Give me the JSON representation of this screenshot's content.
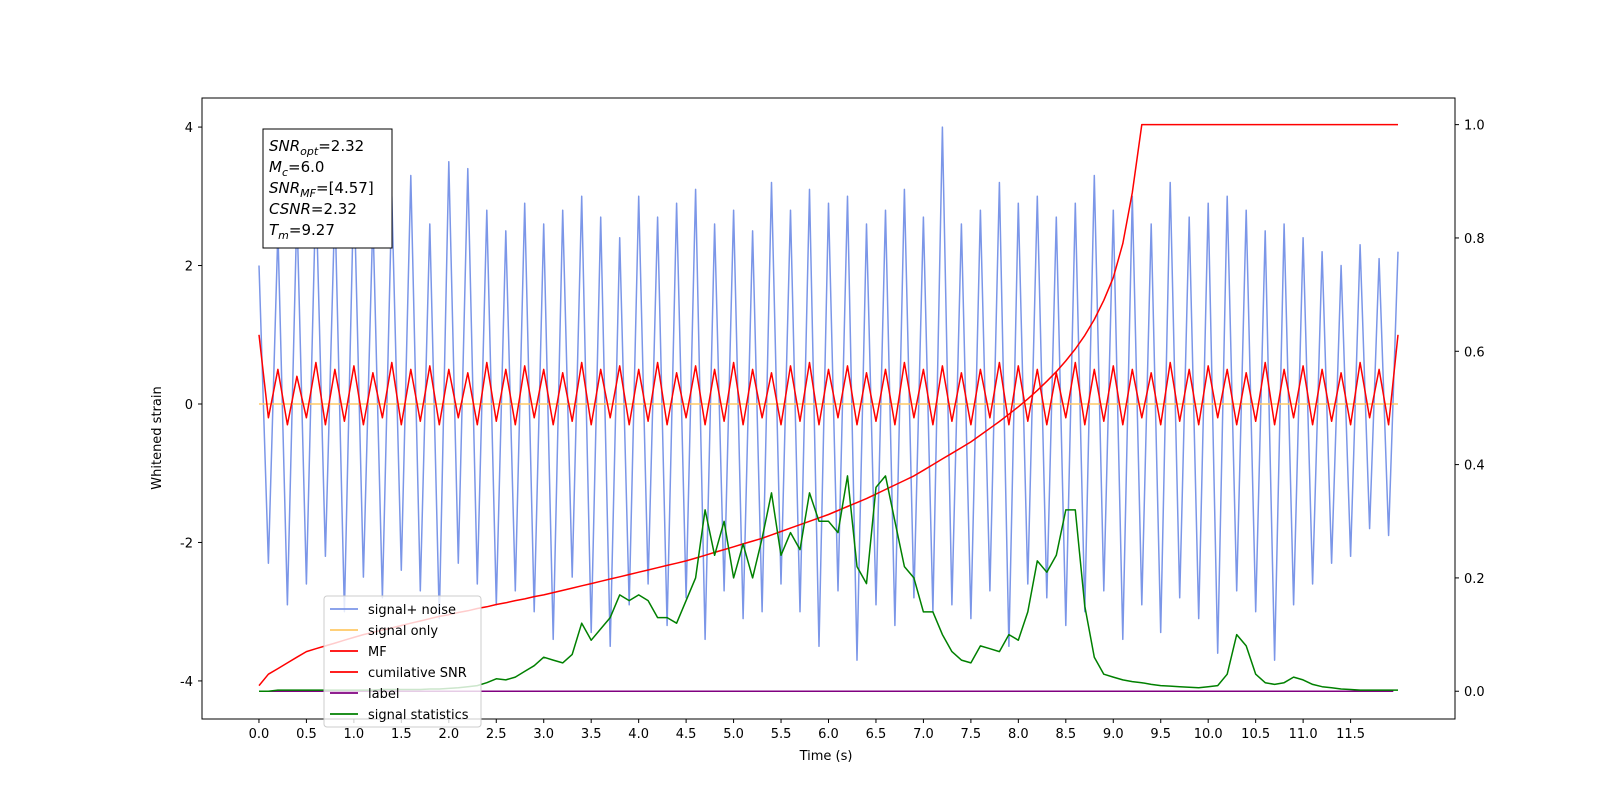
{
  "chart_data": {
    "type": "line",
    "xlabel": "Time (s)",
    "ylabel": "Whitened strain",
    "xlim": [
      -0.6,
      12.6
    ],
    "ylim": [
      -4.55,
      4.42
    ],
    "y2lim": [
      -0.049,
      1.047
    ],
    "xticks": [
      {
        "value": 0,
        "label": "0.0"
      },
      {
        "value": 0.5,
        "label": "0.5"
      },
      {
        "value": 1,
        "label": "1.0"
      },
      {
        "value": 1.5,
        "label": "1.5"
      },
      {
        "value": 2,
        "label": "2.0"
      },
      {
        "value": 2.5,
        "label": "2.5"
      },
      {
        "value": 3,
        "label": "3.0"
      },
      {
        "value": 3.5,
        "label": "3.5"
      },
      {
        "value": 4,
        "label": "4.0"
      },
      {
        "value": 4.5,
        "label": "4.5"
      },
      {
        "value": 5,
        "label": "5.0"
      },
      {
        "value": 5.5,
        "label": "5.5"
      },
      {
        "value": 6,
        "label": "6.0"
      },
      {
        "value": 6.5,
        "label": "6.5"
      },
      {
        "value": 7,
        "label": "7.0"
      },
      {
        "value": 7.5,
        "label": "7.5"
      },
      {
        "value": 8,
        "label": "8.0"
      },
      {
        "value": 8.5,
        "label": "8.5"
      },
      {
        "value": 9,
        "label": "9.0"
      },
      {
        "value": 9.5,
        "label": "9.5"
      },
      {
        "value": 10,
        "label": "10.0"
      },
      {
        "value": 10.5,
        "label": "10.5"
      },
      {
        "value": 11,
        "label": "11.0"
      },
      {
        "value": 11.5,
        "label": "11.5"
      }
    ],
    "yticks": [
      -4,
      -2,
      0,
      2,
      4
    ],
    "y2ticks": [
      {
        "value": 0,
        "label": "0.0"
      },
      {
        "value": 0.2,
        "label": "0.2"
      },
      {
        "value": 0.4,
        "label": "0.4"
      },
      {
        "value": 0.6,
        "label": "0.6"
      },
      {
        "value": 0.8,
        "label": "0.8"
      },
      {
        "value": 1,
        "label": "1.0"
      }
    ],
    "x": [
      0,
      0.1,
      0.2,
      0.3,
      0.4,
      0.5,
      0.6,
      0.7,
      0.8,
      0.9,
      1,
      1.1,
      1.2,
      1.3,
      1.4,
      1.5,
      1.6,
      1.7,
      1.8,
      1.9,
      2,
      2.1,
      2.2,
      2.3,
      2.4,
      2.5,
      2.6,
      2.7,
      2.8,
      2.9,
      3,
      3.1,
      3.2,
      3.3,
      3.4,
      3.5,
      3.6,
      3.7,
      3.8,
      3.9,
      4,
      4.1,
      4.2,
      4.3,
      4.4,
      4.5,
      4.6,
      4.7,
      4.8,
      4.9,
      5,
      5.1,
      5.2,
      5.3,
      5.4,
      5.5,
      5.6,
      5.7,
      5.8,
      5.9,
      6,
      6.1,
      6.2,
      6.3,
      6.4,
      6.5,
      6.6,
      6.7,
      6.8,
      6.9,
      7,
      7.1,
      7.2,
      7.3,
      7.4,
      7.5,
      7.6,
      7.7,
      7.8,
      7.9,
      8,
      8.1,
      8.2,
      8.3,
      8.4,
      8.5,
      8.6,
      8.7,
      8.8,
      8.9,
      9,
      9.1,
      9.2,
      9.3,
      9.4,
      9.5,
      9.6,
      9.7,
      9.8,
      9.9,
      10,
      10.1,
      10.2,
      10.3,
      10.4,
      10.5,
      10.6,
      10.7,
      10.8,
      10.9,
      11,
      11.1,
      11.2,
      11.3,
      11.4,
      11.5,
      11.6,
      11.7,
      11.8,
      11.9,
      12
    ],
    "series": [
      {
        "name": "signal+ noise",
        "color": "#7b96e8",
        "axis": "y",
        "values": [
          2.0,
          -2.3,
          2.5,
          -2.9,
          2.8,
          -2.6,
          3.1,
          -2.2,
          2.9,
          -3.0,
          3.2,
          -2.5,
          2.7,
          -2.8,
          3.0,
          -2.4,
          3.3,
          -2.7,
          2.6,
          -3.1,
          3.5,
          -2.3,
          3.4,
          -2.6,
          2.8,
          -2.9,
          2.5,
          -2.7,
          2.9,
          -3.0,
          2.6,
          -3.4,
          2.8,
          -2.5,
          3.0,
          -3.3,
          2.7,
          -3.5,
          2.4,
          -2.9,
          3.0,
          -2.6,
          2.7,
          -3.2,
          2.9,
          -2.8,
          3.1,
          -3.4,
          2.6,
          -2.7,
          2.8,
          -3.1,
          2.5,
          -3.0,
          3.2,
          -2.6,
          2.8,
          -3.0,
          3.1,
          -3.5,
          2.9,
          -2.7,
          3.0,
          -3.7,
          2.6,
          -2.9,
          2.8,
          -3.2,
          3.1,
          -2.8,
          2.7,
          -3.0,
          4.0,
          -2.9,
          2.6,
          -3.1,
          2.8,
          -2.7,
          3.2,
          -3.5,
          2.9,
          -2.6,
          3.0,
          -2.8,
          2.7,
          -3.2,
          2.9,
          -3.0,
          3.3,
          -2.7,
          2.8,
          -3.4,
          3.0,
          -2.9,
          2.6,
          -3.3,
          3.2,
          -2.8,
          2.7,
          -3.1,
          2.9,
          -3.6,
          3.0,
          -2.7,
          2.8,
          -3.0,
          2.5,
          -3.7,
          2.6,
          -2.9,
          2.4,
          -2.6,
          2.2,
          -2.3,
          2.0,
          -2.2,
          2.3,
          -1.8,
          2.1,
          -1.9,
          2.2
        ]
      },
      {
        "name": "signal only",
        "color": "#ffc966",
        "axis": "y",
        "x": [
          0,
          12
        ],
        "values": [
          0,
          0
        ]
      },
      {
        "name": "MF",
        "color": "#ff0000",
        "axis": "y",
        "values": [
          1.0,
          -0.2,
          0.5,
          -0.3,
          0.4,
          -0.2,
          0.6,
          -0.3,
          0.5,
          -0.25,
          0.55,
          -0.3,
          0.45,
          -0.2,
          0.6,
          -0.3,
          0.5,
          -0.25,
          0.55,
          -0.3,
          0.5,
          -0.2,
          0.45,
          -0.3,
          0.6,
          -0.25,
          0.5,
          -0.3,
          0.55,
          -0.2,
          0.5,
          -0.3,
          0.45,
          -0.25,
          0.6,
          -0.3,
          0.5,
          -0.2,
          0.55,
          -0.3,
          0.5,
          -0.25,
          0.6,
          -0.3,
          0.45,
          -0.2,
          0.55,
          -0.3,
          0.5,
          -0.25,
          0.6,
          -0.3,
          0.5,
          -0.2,
          0.45,
          -0.3,
          0.55,
          -0.25,
          0.6,
          -0.3,
          0.5,
          -0.2,
          0.55,
          -0.3,
          0.45,
          -0.25,
          0.5,
          -0.3,
          0.6,
          -0.2,
          0.5,
          -0.3,
          0.55,
          -0.25,
          0.45,
          -0.3,
          0.5,
          -0.2,
          0.6,
          -0.3,
          0.55,
          -0.25,
          0.5,
          -0.3,
          0.45,
          -0.2,
          0.6,
          -0.3,
          0.5,
          -0.25,
          0.55,
          -0.3,
          0.5,
          -0.2,
          0.45,
          -0.3,
          0.6,
          -0.25,
          0.5,
          -0.3,
          0.55,
          -0.2,
          0.5,
          -0.3,
          0.45,
          -0.25,
          0.6,
          -0.3,
          0.5,
          -0.2,
          0.55,
          -0.3,
          0.5,
          -0.25,
          0.45,
          -0.3,
          0.6,
          -0.2,
          0.5,
          -0.3,
          1.0
        ]
      },
      {
        "name": "cumilative SNR",
        "color": "#ff0000",
        "axis": "y2",
        "values": [
          0.01,
          0.03,
          0.04,
          0.05,
          0.06,
          0.07,
          0.075,
          0.08,
          0.085,
          0.09,
          0.095,
          0.1,
          0.104,
          0.108,
          0.112,
          0.116,
          0.12,
          0.124,
          0.128,
          0.132,
          0.135,
          0.139,
          0.142,
          0.146,
          0.149,
          0.153,
          0.156,
          0.16,
          0.163,
          0.167,
          0.17,
          0.174,
          0.178,
          0.182,
          0.186,
          0.19,
          0.194,
          0.198,
          0.202,
          0.206,
          0.21,
          0.214,
          0.218,
          0.222,
          0.226,
          0.23,
          0.235,
          0.24,
          0.245,
          0.25,
          0.255,
          0.26,
          0.265,
          0.27,
          0.276,
          0.282,
          0.288,
          0.294,
          0.3,
          0.306,
          0.312,
          0.319,
          0.326,
          0.333,
          0.34,
          0.348,
          0.356,
          0.364,
          0.372,
          0.38,
          0.39,
          0.4,
          0.41,
          0.42,
          0.43,
          0.44,
          0.452,
          0.464,
          0.476,
          0.489,
          0.502,
          0.516,
          0.531,
          0.547,
          0.564,
          0.583,
          0.604,
          0.628,
          0.656,
          0.69,
          0.73,
          0.79,
          0.88,
          1.0,
          1,
          1,
          1,
          1,
          1,
          1,
          1,
          1,
          1,
          1,
          1,
          1,
          1,
          1,
          1,
          1,
          1,
          1,
          1,
          1,
          1,
          1,
          1,
          1,
          1,
          1,
          1
        ]
      },
      {
        "name": "label",
        "color": "#800080",
        "axis": "y2",
        "x": [
          0,
          11.95
        ],
        "values": [
          0,
          0
        ]
      },
      {
        "name": "signal statistics",
        "color": "#008000",
        "axis": "y2",
        "values": [
          0,
          0,
          0.002,
          0.002,
          0.002,
          0.002,
          0.002,
          0.002,
          0.002,
          0.002,
          0.002,
          0.002,
          0.002,
          0.003,
          0.003,
          0.003,
          0.003,
          0.003,
          0.004,
          0.004,
          0.005,
          0.006,
          0.008,
          0.01,
          0.015,
          0.022,
          0.02,
          0.025,
          0.035,
          0.045,
          0.06,
          0.055,
          0.05,
          0.065,
          0.12,
          0.09,
          0.11,
          0.13,
          0.17,
          0.16,
          0.17,
          0.16,
          0.13,
          0.13,
          0.12,
          0.16,
          0.2,
          0.32,
          0.24,
          0.3,
          0.2,
          0.26,
          0.2,
          0.27,
          0.35,
          0.24,
          0.28,
          0.25,
          0.35,
          0.3,
          0.3,
          0.28,
          0.38,
          0.22,
          0.19,
          0.36,
          0.38,
          0.3,
          0.22,
          0.2,
          0.14,
          0.14,
          0.1,
          0.07,
          0.055,
          0.05,
          0.08,
          0.075,
          0.07,
          0.1,
          0.09,
          0.14,
          0.23,
          0.21,
          0.24,
          0.32,
          0.32,
          0.15,
          0.06,
          0.03,
          0.025,
          0.02,
          0.017,
          0.015,
          0.012,
          0.01,
          0.009,
          0.008,
          0.007,
          0.006,
          0.008,
          0.01,
          0.03,
          0.1,
          0.08,
          0.03,
          0.015,
          0.012,
          0.015,
          0.025,
          0.02,
          0.012,
          0.008,
          0.006,
          0.004,
          0.003,
          0.002,
          0.002,
          0.002,
          0.002,
          0.002
        ]
      }
    ],
    "annotations": [
      {
        "symbol": "SNR",
        "sub": "opt",
        "text": "=2.32"
      },
      {
        "symbol": "M",
        "sub": "c",
        "text": "=6.0"
      },
      {
        "symbol": "SNR",
        "sub": "MF",
        "text": "=[4.57]"
      },
      {
        "symbol": "CSNR",
        "text": "=2.32"
      },
      {
        "symbol": "T",
        "sub": "m",
        "text": "=9.27"
      }
    ]
  }
}
